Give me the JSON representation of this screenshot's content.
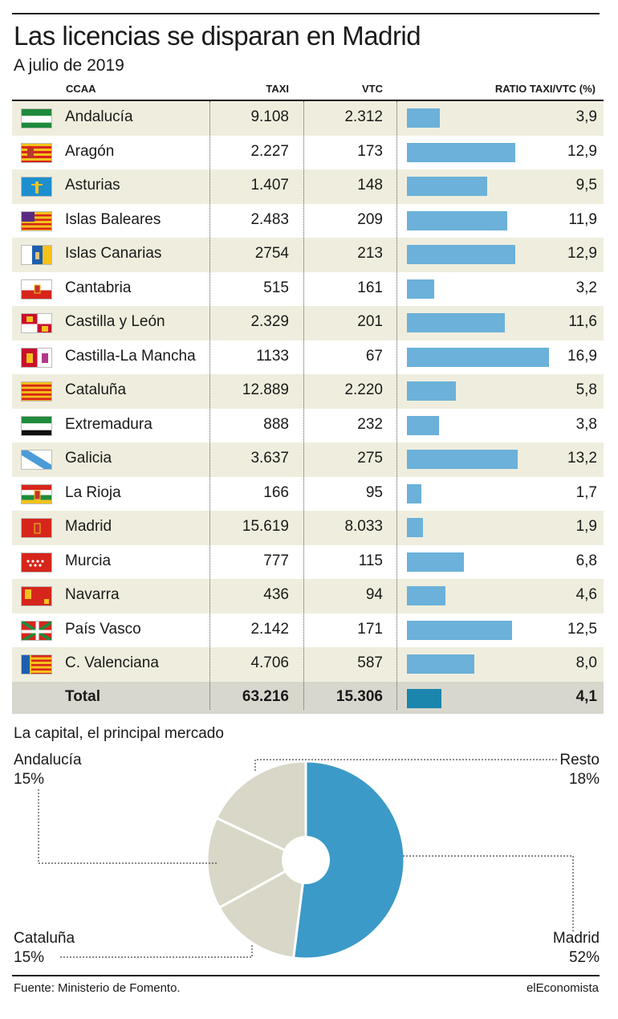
{
  "title": "Las licencias se disparan en Madrid",
  "subtitle": "A julio de 2019",
  "columns": {
    "ccaa": "CCAA",
    "taxi": "TAXI",
    "vtc": "VTC",
    "ratio": "RATIO TAXI/VTC (%)"
  },
  "chart_data": [
    {
      "type": "table",
      "columns": [
        "CCAA",
        "TAXI",
        "VTC",
        "RATIO TAXI/VTC (%)"
      ],
      "bar_color": "#6bb1d9",
      "total_bar_color": "#1a85ad",
      "ratio_max": 16.9,
      "rows": [
        {
          "region": "Andalucía",
          "flag": "andalucia",
          "taxi": "9.108",
          "vtc": "2.312",
          "ratio_label": "3,9",
          "ratio": 3.9
        },
        {
          "region": "Aragón",
          "flag": "aragon",
          "taxi": "2.227",
          "vtc": "173",
          "ratio_label": "12,9",
          "ratio": 12.9
        },
        {
          "region": "Asturias",
          "flag": "asturias",
          "taxi": "1.407",
          "vtc": "148",
          "ratio_label": "9,5",
          "ratio": 9.5
        },
        {
          "region": "Islas Baleares",
          "flag": "baleares",
          "taxi": "2.483",
          "vtc": "209",
          "ratio_label": "11,9",
          "ratio": 11.9
        },
        {
          "region": "Islas Canarias",
          "flag": "canarias",
          "taxi": "2754",
          "vtc": "213",
          "ratio_label": "12,9",
          "ratio": 12.9
        },
        {
          "region": "Cantabria",
          "flag": "cantabria",
          "taxi": "515",
          "vtc": "161",
          "ratio_label": "3,2",
          "ratio": 3.2
        },
        {
          "region": "Castilla y León",
          "flag": "castilla-leon",
          "taxi": "2.329",
          "vtc": "201",
          "ratio_label": "11,6",
          "ratio": 11.6
        },
        {
          "region": "Castilla-La Mancha",
          "flag": "castilla-la-mancha",
          "taxi": "1133",
          "vtc": "67",
          "ratio_label": "16,9",
          "ratio": 16.9
        },
        {
          "region": "Cataluña",
          "flag": "cataluna",
          "taxi": "12.889",
          "vtc": "2.220",
          "ratio_label": "5,8",
          "ratio": 5.8
        },
        {
          "region": "Extremadura",
          "flag": "extremadura",
          "taxi": "888",
          "vtc": "232",
          "ratio_label": "3,8",
          "ratio": 3.8
        },
        {
          "region": "Galicia",
          "flag": "galicia",
          "taxi": "3.637",
          "vtc": "275",
          "ratio_label": "13,2",
          "ratio": 13.2
        },
        {
          "region": "La Rioja",
          "flag": "la-rioja",
          "taxi": "166",
          "vtc": "95",
          "ratio_label": "1,7",
          "ratio": 1.7
        },
        {
          "region": "Madrid",
          "flag": "madrid",
          "taxi": "15.619",
          "vtc": "8.033",
          "ratio_label": "1,9",
          "ratio": 1.9
        },
        {
          "region": "Murcia",
          "flag": "murcia",
          "taxi": "777",
          "vtc": "115",
          "ratio_label": "6,8",
          "ratio": 6.8
        },
        {
          "region": "Navarra",
          "flag": "navarra",
          "taxi": "436",
          "vtc": "94",
          "ratio_label": "4,6",
          "ratio": 4.6
        },
        {
          "region": "País Vasco",
          "flag": "pais-vasco",
          "taxi": "2.142",
          "vtc": "171",
          "ratio_label": "12,5",
          "ratio": 12.5
        },
        {
          "region": "C. Valenciana",
          "flag": "valenciana",
          "taxi": "4.706",
          "vtc": "587",
          "ratio_label": "8,0",
          "ratio": 8.0
        }
      ],
      "total": {
        "region": "Total",
        "taxi": "63.216",
        "vtc": "15.306",
        "ratio_label": "4,1",
        "ratio": 4.1
      }
    },
    {
      "type": "pie",
      "title": "La capital, el principal mercado",
      "donut": true,
      "slices": [
        {
          "label": "Madrid",
          "value": 52,
          "value_label": "52%",
          "color": "#3b9ac7"
        },
        {
          "label": "Cataluña",
          "value": 15,
          "value_label": "15%",
          "color": "#d8d7c8"
        },
        {
          "label": "Andalucía",
          "value": 15,
          "value_label": "15%",
          "color": "#d8d7c8"
        },
        {
          "label": "Resto",
          "value": 18,
          "value_label": "18%",
          "color": "#d8d7c8"
        }
      ]
    }
  ],
  "footer": {
    "source": "Fuente: Ministerio de Fomento.",
    "brand": "elEconomista"
  }
}
